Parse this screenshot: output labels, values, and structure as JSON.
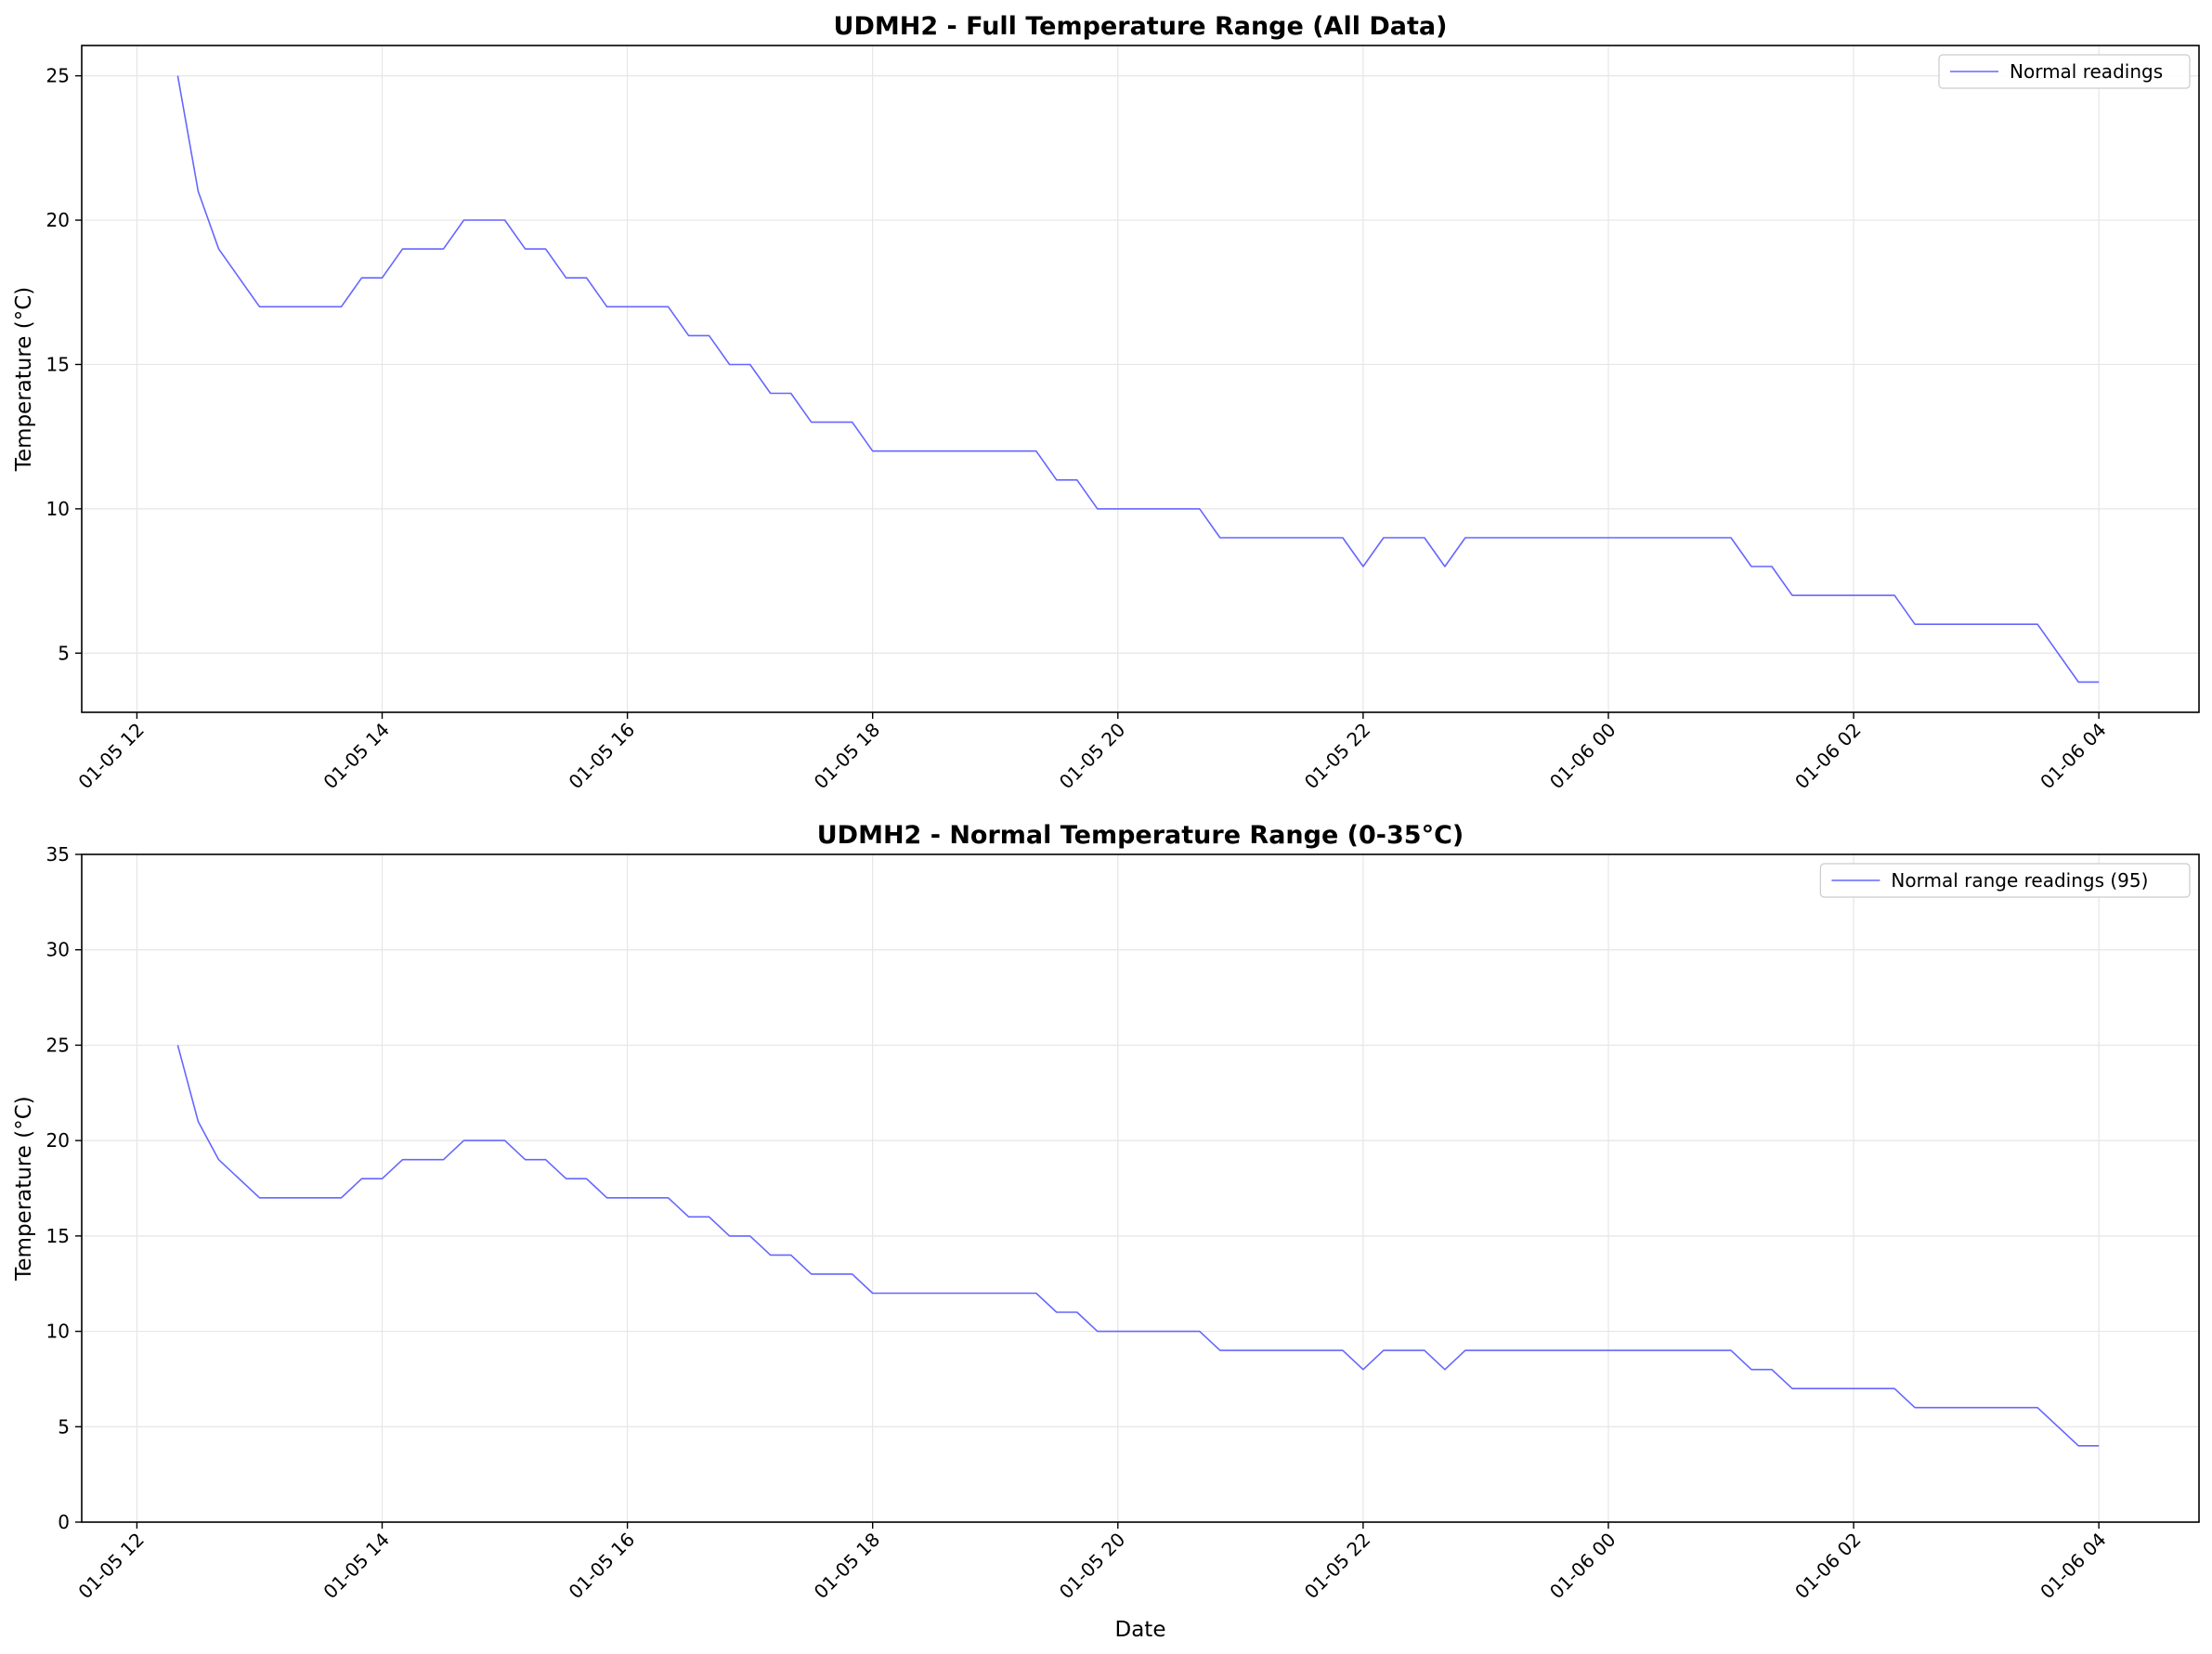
{
  "chart_data": [
    {
      "type": "line",
      "title": "UDMH2 - Full Temperature Range (All Data)",
      "xlabel": "",
      "ylabel": "Temperature (°C)",
      "x_tick_labels": [
        "01-05 12",
        "01-05 14",
        "01-05 16",
        "01-05 18",
        "01-05 20",
        "01-05 22",
        "01-06 00",
        "01-06 02",
        "01-06 04"
      ],
      "x_ticks": [
        "2024-01-05 12:00",
        "2024-01-05 14:00",
        "2024-01-05 16:00",
        "2024-01-05 18:00",
        "2024-01-05 20:00",
        "2024-01-05 22:00",
        "2024-01-06 00:00",
        "2024-01-06 02:00",
        "2024-01-06 04:00"
      ],
      "xlim": [
        "2024-01-05 11:33",
        "2024-01-06 04:49"
      ],
      "ylim": [
        2.95,
        26.05
      ],
      "y_ticks": [
        5,
        10,
        15,
        20,
        25
      ],
      "grid": true,
      "legend_position": "top-right",
      "series": [
        {
          "name": "Normal readings",
          "color": "#6666ff",
          "x": [
            "2024-01-05 12:20",
            "2024-01-05 12:30",
            "2024-01-05 12:40",
            "2024-01-05 13:00",
            "2024-01-05 13:40",
            "2024-01-05 13:50",
            "2024-01-05 14:00",
            "2024-01-05 14:10",
            "2024-01-05 14:30",
            "2024-01-05 14:40",
            "2024-01-05 15:00",
            "2024-01-05 15:10",
            "2024-01-05 15:20",
            "2024-01-05 15:30",
            "2024-01-05 15:40",
            "2024-01-05 15:50",
            "2024-01-05 16:20",
            "2024-01-05 16:30",
            "2024-01-05 16:40",
            "2024-01-05 16:50",
            "2024-01-05 17:00",
            "2024-01-05 17:10",
            "2024-01-05 17:20",
            "2024-01-05 17:30",
            "2024-01-05 17:50",
            "2024-01-05 18:00",
            "2024-01-05 19:20",
            "2024-01-05 19:30",
            "2024-01-05 19:40",
            "2024-01-05 19:50",
            "2024-01-05 20:40",
            "2024-01-05 20:50",
            "2024-01-05 21:50",
            "2024-01-05 22:00",
            "2024-01-05 22:10",
            "2024-01-05 22:30",
            "2024-01-05 22:40",
            "2024-01-05 22:50",
            "2024-01-06 01:00",
            "2024-01-06 01:10",
            "2024-01-06 01:20",
            "2024-01-06 01:30",
            "2024-01-06 02:20",
            "2024-01-06 02:30",
            "2024-01-06 03:30",
            "2024-01-06 03:50",
            "2024-01-06 04:00"
          ],
          "y": [
            25,
            21,
            19,
            17,
            17,
            18,
            18,
            19,
            19,
            20,
            20,
            19,
            19,
            18,
            18,
            17,
            17,
            16,
            16,
            15,
            15,
            14,
            14,
            13,
            13,
            12,
            12,
            11,
            11,
            10,
            10,
            9,
            9,
            8,
            9,
            9,
            8,
            9,
            9,
            8,
            8,
            7,
            7,
            6,
            6,
            4,
            4
          ]
        }
      ]
    },
    {
      "type": "line",
      "title": "UDMH2 - Normal Temperature Range (0-35°C)",
      "xlabel": "Date",
      "ylabel": "Temperature (°C)",
      "x_tick_labels": [
        "01-05 12",
        "01-05 14",
        "01-05 16",
        "01-05 18",
        "01-05 20",
        "01-05 22",
        "01-06 00",
        "01-06 02",
        "01-06 04"
      ],
      "x_ticks": [
        "2024-01-05 12:00",
        "2024-01-05 14:00",
        "2024-01-05 16:00",
        "2024-01-05 18:00",
        "2024-01-05 20:00",
        "2024-01-05 22:00",
        "2024-01-06 00:00",
        "2024-01-06 02:00",
        "2024-01-06 04:00"
      ],
      "xlim": [
        "2024-01-05 11:33",
        "2024-01-06 04:49"
      ],
      "ylim": [
        0,
        35
      ],
      "y_ticks": [
        0,
        5,
        10,
        15,
        20,
        25,
        30,
        35
      ],
      "grid": true,
      "legend_position": "top-right",
      "series": [
        {
          "name": "Normal range readings (95)",
          "color": "#6666ff",
          "x": [
            "2024-01-05 12:20",
            "2024-01-05 12:30",
            "2024-01-05 12:40",
            "2024-01-05 13:00",
            "2024-01-05 13:40",
            "2024-01-05 13:50",
            "2024-01-05 14:00",
            "2024-01-05 14:10",
            "2024-01-05 14:30",
            "2024-01-05 14:40",
            "2024-01-05 15:00",
            "2024-01-05 15:10",
            "2024-01-05 15:20",
            "2024-01-05 15:30",
            "2024-01-05 15:40",
            "2024-01-05 15:50",
            "2024-01-05 16:20",
            "2024-01-05 16:30",
            "2024-01-05 16:40",
            "2024-01-05 16:50",
            "2024-01-05 17:00",
            "2024-01-05 17:10",
            "2024-01-05 17:20",
            "2024-01-05 17:30",
            "2024-01-05 17:50",
            "2024-01-05 18:00",
            "2024-01-05 19:20",
            "2024-01-05 19:30",
            "2024-01-05 19:40",
            "2024-01-05 19:50",
            "2024-01-05 20:40",
            "2024-01-05 20:50",
            "2024-01-05 21:50",
            "2024-01-05 22:00",
            "2024-01-05 22:10",
            "2024-01-05 22:30",
            "2024-01-05 22:40",
            "2024-01-05 22:50",
            "2024-01-06 01:00",
            "2024-01-06 01:10",
            "2024-01-06 01:20",
            "2024-01-06 01:30",
            "2024-01-06 02:20",
            "2024-01-06 02:30",
            "2024-01-06 03:30",
            "2024-01-06 03:50",
            "2024-01-06 04:00"
          ],
          "y": [
            25,
            21,
            19,
            17,
            17,
            18,
            18,
            19,
            19,
            20,
            20,
            19,
            19,
            18,
            18,
            17,
            17,
            16,
            16,
            15,
            15,
            14,
            14,
            13,
            13,
            12,
            12,
            11,
            11,
            10,
            10,
            9,
            9,
            8,
            9,
            9,
            8,
            9,
            9,
            8,
            8,
            7,
            7,
            6,
            6,
            4,
            4
          ]
        }
      ]
    }
  ]
}
